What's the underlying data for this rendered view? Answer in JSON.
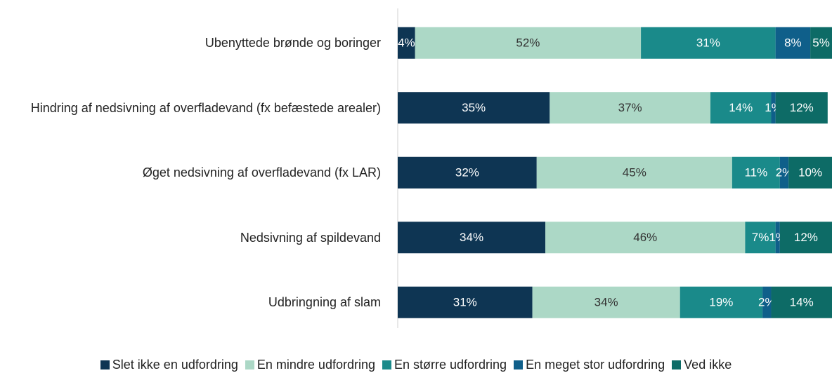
{
  "chart_data": {
    "type": "stacked-bar-horizontal",
    "categories": [
      "Ubenyttede brønde og boringer",
      "Hindring af nedsivning af overfladevand (fx befæstede arealer)",
      "Øget nedsivning af overfladevand (fx LAR)",
      "Nedsivning af spildevand",
      "Udbringning af slam"
    ],
    "xlim": [
      0,
      100
    ],
    "series": [
      {
        "name": "Slet ikke en udfordring",
        "color": "#0e3553",
        "label_color": "#ffffff",
        "values": [
          4,
          35,
          32,
          34,
          31
        ],
        "value_labels": [
          "4%",
          "35%",
          "32%",
          "34%",
          "31%"
        ]
      },
      {
        "name": "En mindre udfordring",
        "color": "#acd8c6",
        "label_color": "#333333",
        "values": [
          52,
          37,
          45,
          46,
          34
        ],
        "value_labels": [
          "52%",
          "37%",
          "45%",
          "46%",
          "34%"
        ]
      },
      {
        "name": "En større udfordring",
        "color": "#1a8a8a",
        "label_color": "#ffffff",
        "values": [
          31,
          14,
          11,
          7,
          19
        ],
        "value_labels": [
          "31%",
          "14%",
          "11%",
          "7%",
          "19%"
        ]
      },
      {
        "name": "En meget stor udfordring",
        "color": "#0f5f8a",
        "label_color": "#ffffff",
        "values": [
          8,
          1,
          2,
          1,
          2
        ],
        "value_labels": [
          "8%",
          "1%",
          "2%",
          "1%",
          "2%"
        ]
      },
      {
        "name": "Ved ikke",
        "color": "#0d6b66",
        "label_color": "#ffffff",
        "values": [
          5,
          12,
          10,
          12,
          14
        ],
        "value_labels": [
          "5%",
          "12%",
          "10%",
          "12%",
          "14%"
        ]
      }
    ]
  }
}
